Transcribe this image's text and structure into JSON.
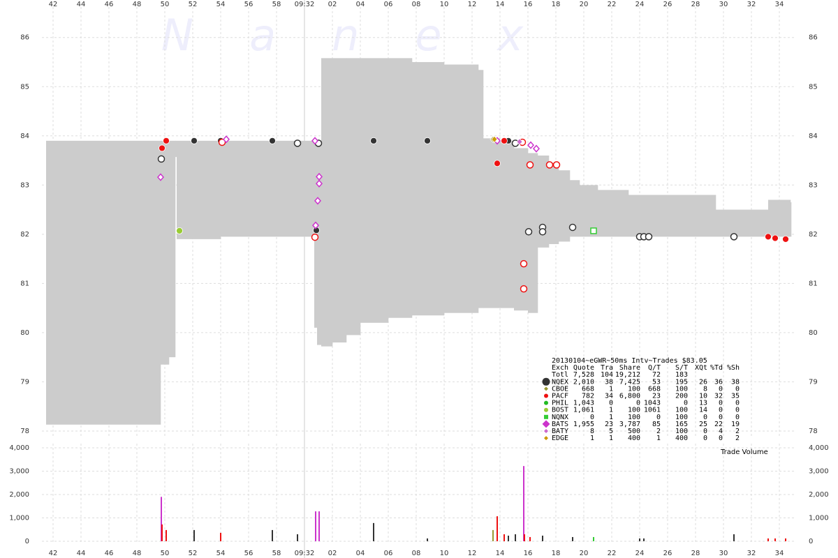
{
  "chart_data": [
    {
      "type": "band-scatter",
      "watermark": "Nanex",
      "xlim": [
        41.2,
        95.2
      ],
      "xticks": [
        42,
        44,
        46,
        48,
        50,
        52,
        54,
        56,
        58,
        {
          "value": 60,
          "label": "09:32"
        },
        {
          "value": 62,
          "label": "02"
        },
        {
          "value": 64,
          "label": "04"
        },
        {
          "value": 66,
          "label": "06"
        },
        {
          "value": 68,
          "label": "08"
        },
        {
          "value": 70,
          "label": "10"
        },
        {
          "value": 72,
          "label": "12"
        },
        {
          "value": 74,
          "label": "14"
        },
        {
          "value": 76,
          "label": "16"
        },
        {
          "value": 78,
          "label": "18"
        },
        {
          "value": 80,
          "label": "20"
        },
        {
          "value": 82,
          "label": "22"
        },
        {
          "value": 84,
          "label": "24"
        },
        {
          "value": 86,
          "label": "26"
        },
        {
          "value": 88,
          "label": "28"
        },
        {
          "value": 90,
          "label": "30"
        },
        {
          "value": 92,
          "label": "32"
        },
        {
          "value": 94,
          "label": "34"
        }
      ],
      "ylim": [
        77.9,
        86.62
      ],
      "yticks": [
        78,
        79,
        80,
        81,
        82,
        83,
        84,
        85,
        86
      ],
      "grid": true,
      "band": {
        "color": "#cccccc",
        "x": [
          41.5,
          49.7,
          50.3,
          50.75,
          50.85,
          54,
          58,
          60.7,
          60.9,
          61.2,
          62,
          63,
          64,
          66,
          67.7,
          70,
          72.45,
          72.8,
          74,
          75,
          76,
          76.7,
          77.5,
          78.2,
          79,
          79.7,
          81,
          83.2,
          89.45,
          93.2,
          94.8
        ],
        "upper": [
          83.9,
          83.9,
          83.9,
          83.9,
          83.9,
          83.9,
          83.9,
          83.9,
          83.9,
          85.58,
          85.58,
          85.58,
          85.58,
          85.58,
          85.5,
          85.45,
          85.34,
          83.95,
          83.9,
          83.75,
          83.65,
          83.6,
          83.45,
          83.3,
          83.1,
          83.0,
          82.9,
          82.8,
          82.5,
          82.7,
          82.65
        ],
        "lower": [
          78.13,
          79.35,
          79.5,
          83.57,
          81.9,
          81.95,
          81.95,
          80.1,
          79.75,
          79.72,
          79.8,
          79.95,
          80.2,
          80.3,
          80.35,
          80.4,
          80.5,
          80.5,
          80.5,
          80.45,
          80.4,
          81.73,
          81.8,
          81.85,
          81.95,
          81.95,
          81.95,
          81.95,
          81.95,
          81.95,
          81.95
        ]
      },
      "table_title": "20130104~eGWR~50ms Intv~Trades $83.05",
      "table_header": [
        "Exch",
        "Quote",
        "Tra",
        "Share",
        "Q/T",
        "S/T",
        "XQt",
        "%Td",
        "%Sh"
      ],
      "total": [
        "Totl",
        "7,528",
        "104",
        "19,212",
        "72",
        "183"
      ],
      "series": [
        {
          "name": "NQEX",
          "color": "#333333",
          "marker": "circle",
          "x": [
            52.1,
            54.0,
            57.7,
            64.95,
            68.8,
            60.85,
            74.6,
            49.75,
            59.5,
            61.0,
            75.1,
            76.05,
            77.05,
            77.05,
            79.2,
            84.0,
            84.3,
            84.65,
            90.75
          ],
          "y": [
            83.9,
            83.9,
            83.9,
            83.9,
            83.9,
            82.08,
            83.9,
            83.53,
            83.85,
            83.85,
            83.85,
            82.05,
            82.14,
            82.05,
            82.14,
            81.95,
            81.95,
            81.95,
            81.95
          ],
          "hollow": [
            false,
            false,
            false,
            false,
            false,
            false,
            false,
            true,
            true,
            true,
            true,
            true,
            true,
            true,
            true,
            true,
            true,
            true,
            true
          ],
          "stats": [
            "2,010",
            "38",
            "7,425",
            "53",
            "195",
            "26",
            "36",
            "38"
          ]
        },
        {
          "name": "CBOE",
          "color": "#999933",
          "marker": "diamond",
          "x": [
            73.5
          ],
          "y": [
            83.93
          ],
          "hollow": [
            false
          ],
          "stats": [
            "668",
            "1",
            "100",
            "668",
            "100",
            "8",
            "0",
            "0"
          ]
        },
        {
          "name": "PACF",
          "color": "#ee1111",
          "marker": "circle",
          "x": [
            49.8,
            50.1,
            73.8,
            74.3,
            93.2,
            93.7,
            94.45,
            54.1,
            75.7,
            75.7,
            75.6,
            76.15,
            77.55,
            78.05,
            60.75
          ],
          "y": [
            83.75,
            83.9,
            83.44,
            83.9,
            81.95,
            81.92,
            81.9,
            83.87,
            81.4,
            80.89,
            83.87,
            83.41,
            83.41,
            83.41,
            81.94
          ],
          "hollow": [
            false,
            false,
            false,
            false,
            false,
            false,
            false,
            true,
            true,
            true,
            true,
            true,
            true,
            true,
            true
          ],
          "stats": [
            "782",
            "34",
            "6,800",
            "23",
            "200",
            "10",
            "32",
            "35"
          ]
        },
        {
          "name": "PHIL",
          "color": "#22bb22",
          "marker": "circle",
          "x": [],
          "y": [],
          "hollow": [],
          "stats": [
            "1,043",
            "0",
            "0",
            "1043",
            "0",
            "13",
            "0",
            "0"
          ]
        },
        {
          "name": "BOST",
          "color": "#99cc33",
          "marker": "circle",
          "x": [
            51.05
          ],
          "y": [
            82.07
          ],
          "hollow": [
            false
          ],
          "stats": [
            "1,061",
            "1",
            "100",
            "1061",
            "100",
            "14",
            "0",
            "0"
          ]
        },
        {
          "name": "NQNX",
          "color": "#33cc33",
          "marker": "square",
          "x": [
            80.7
          ],
          "y": [
            82.07
          ],
          "hollow": [
            true
          ],
          "stats": [
            "0",
            "1",
            "100",
            "0",
            "100",
            "0",
            "0",
            "0"
          ]
        },
        {
          "name": "BATS",
          "color": "#cc33cc",
          "marker": "diamond",
          "x": [
            49.7,
            54.4,
            60.8,
            61.05,
            61.05,
            60.95,
            73.8,
            76.2,
            76.6,
            60.75
          ],
          "y": [
            83.16,
            83.93,
            82.18,
            83.17,
            83.03,
            82.68,
            83.9,
            83.81,
            83.74,
            83.9
          ],
          "hollow": [
            true,
            true,
            true,
            true,
            true,
            true,
            true,
            true,
            true,
            true
          ],
          "stats": [
            "1,955",
            "23",
            "3,787",
            "85",
            "165",
            "25",
            "22",
            "19"
          ]
        },
        {
          "name": "BATY",
          "color": "#cc66cc",
          "marker": "diamond",
          "x": [
            75.4
          ],
          "y": [
            83.88
          ],
          "hollow": [
            false
          ],
          "stats": [
            "8",
            "5",
            "500",
            "2",
            "100",
            "0",
            "4",
            "2"
          ]
        },
        {
          "name": "EDGE",
          "color": "#cc9900",
          "marker": "diamond",
          "x": [
            73.6
          ],
          "y": [
            83.93
          ],
          "hollow": [
            false
          ],
          "stats": [
            "1",
            "1",
            "400",
            "1",
            "400",
            "0",
            "0",
            "2"
          ]
        }
      ]
    },
    {
      "type": "bar",
      "title": "Trade Volume",
      "ylim": [
        -120,
        4180
      ],
      "yticks": [
        0,
        {
          "value": 1000,
          "label": "1,000"
        },
        {
          "value": 2000,
          "label": "2,000"
        },
        {
          "value": 3000,
          "label": "3,000"
        },
        {
          "value": 4000,
          "label": "4,000"
        }
      ],
      "x": [
        49.75,
        49.8,
        50.1,
        52.1,
        54.0,
        57.7,
        59.5,
        60.8,
        61.05,
        64.95,
        68.8,
        73.5,
        73.8,
        74.3,
        74.6,
        75.1,
        75.7,
        75.75,
        76.15,
        77.05,
        79.2,
        80.7,
        84.0,
        84.3,
        90.75,
        93.2,
        93.7,
        94.45
      ],
      "values": [
        1900,
        720,
        480,
        480,
        360,
        480,
        300,
        1280,
        1280,
        780,
        120,
        480,
        1070,
        300,
        240,
        300,
        3220,
        300,
        180,
        240,
        180,
        180,
        120,
        120,
        300,
        120,
        120,
        120
      ],
      "colors": [
        "#cc33cc",
        "#ee1111",
        "#ee1111",
        "#333333",
        "#ee1111",
        "#333333",
        "#333333",
        "#cc33cc",
        "#cc33cc",
        "#333333",
        "#333333",
        "#999933",
        "#ee1111",
        "#ee1111",
        "#333333",
        "#333333",
        "#cc33cc",
        "#ee1111",
        "#ee1111",
        "#333333",
        "#333333",
        "#33cc33",
        "#333333",
        "#333333",
        "#333333",
        "#ee1111",
        "#ee1111",
        "#ee1111"
      ]
    }
  ]
}
